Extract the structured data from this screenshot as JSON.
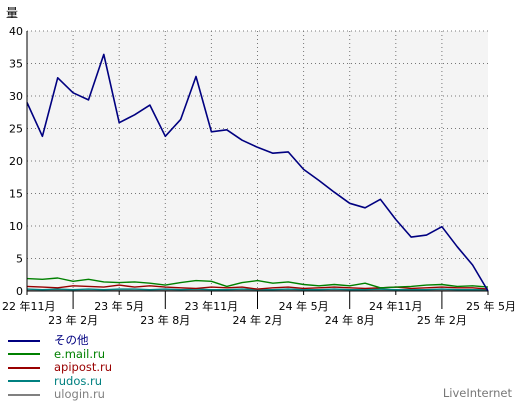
{
  "chart_data": {
    "type": "line",
    "ylabel": "量",
    "ylim": [
      0,
      40
    ],
    "yticks": [
      0,
      5,
      10,
      15,
      20,
      25,
      30,
      35,
      40
    ],
    "grid": true,
    "legend_placement": "bottom-left",
    "x_tick_labels": [
      {
        "label": "22 年11月",
        "row": 1,
        "index": 0
      },
      {
        "label": "23 年 2月",
        "row": 2,
        "index": 3
      },
      {
        "label": "23 年 5月",
        "row": 1,
        "index": 6
      },
      {
        "label": "23 年 8月",
        "row": 2,
        "index": 9
      },
      {
        "label": "23 年11月",
        "row": 1,
        "index": 12
      },
      {
        "label": "24 年 2月",
        "row": 2,
        "index": 15
      },
      {
        "label": "24 年 5月",
        "row": 1,
        "index": 18
      },
      {
        "label": "24 年 8月",
        "row": 2,
        "index": 21
      },
      {
        "label": "24 年11月",
        "row": 1,
        "index": 24
      },
      {
        "label": "25 年 2月",
        "row": 2,
        "index": 27
      },
      {
        "label": "25 年 5月",
        "row": 1,
        "index": 30
      }
    ],
    "series": [
      {
        "name": "その他",
        "color": "#000080",
        "values": [
          29,
          23.8,
          32.8,
          30.5,
          29.4,
          36.4,
          25.9,
          27.1,
          28.6,
          23.8,
          26.4,
          33,
          24.5,
          24.8,
          23.2,
          22.1,
          21.2,
          21.4,
          18.7,
          17,
          15.2,
          13.5,
          12.8,
          14.1,
          11,
          8.3,
          8.6,
          9.9,
          6.8,
          4,
          0
        ]
      },
      {
        "name": "e.mail.ru",
        "color": "#008000",
        "values": [
          1.9,
          1.8,
          2.0,
          1.5,
          1.8,
          1.4,
          1.3,
          1.4,
          1.2,
          0.9,
          1.3,
          1.6,
          1.5,
          0.7,
          1.3,
          1.6,
          1.2,
          1.4,
          1.0,
          0.8,
          1.0,
          0.8,
          1.2,
          0.5,
          0.6,
          0.7,
          0.9,
          1.0,
          0.7,
          0.8,
          0.6
        ]
      },
      {
        "name": "apipost.ru",
        "color": "#990000",
        "values": [
          0.7,
          0.6,
          0.5,
          0.8,
          0.7,
          0.6,
          0.9,
          0.6,
          0.8,
          0.6,
          0.5,
          0.4,
          0.6,
          0.5,
          0.6,
          0.3,
          0.5,
          0.6,
          0.4,
          0.5,
          0.6,
          0.5,
          0.4,
          0.5,
          0.6,
          0.4,
          0.5,
          0.6,
          0.5,
          0.5,
          0.3
        ]
      },
      {
        "name": "rudos.ru",
        "color": "#008080",
        "values": [
          0.3,
          0.2,
          0.3,
          0.2,
          0.3,
          0.2,
          0.3,
          0.3,
          0.2,
          0.3,
          0.2,
          0.3,
          0.2,
          0.2,
          0.3,
          0.2,
          0.2,
          0.3,
          0.2,
          0.2,
          0.3,
          0.2,
          0.2,
          0.3,
          0.2,
          0.2,
          0.2,
          0.3,
          0.2,
          0.2,
          0.2
        ]
      },
      {
        "name": "ulogin.ru",
        "color": "#808080",
        "values": [
          0.1,
          0.1,
          0.2,
          0.1,
          0.1,
          0.1,
          0.2,
          0.1,
          0.1,
          0.1,
          0.2,
          0.1,
          0.1,
          0.1,
          0.1,
          0.2,
          0.1,
          0.1,
          0.1,
          0.1,
          0.1,
          0.1,
          0.2,
          0.1,
          0.1,
          0.1,
          0.1,
          0.1,
          0.1,
          0.1,
          0.1
        ]
      }
    ]
  },
  "watermark": "LiveInternet"
}
